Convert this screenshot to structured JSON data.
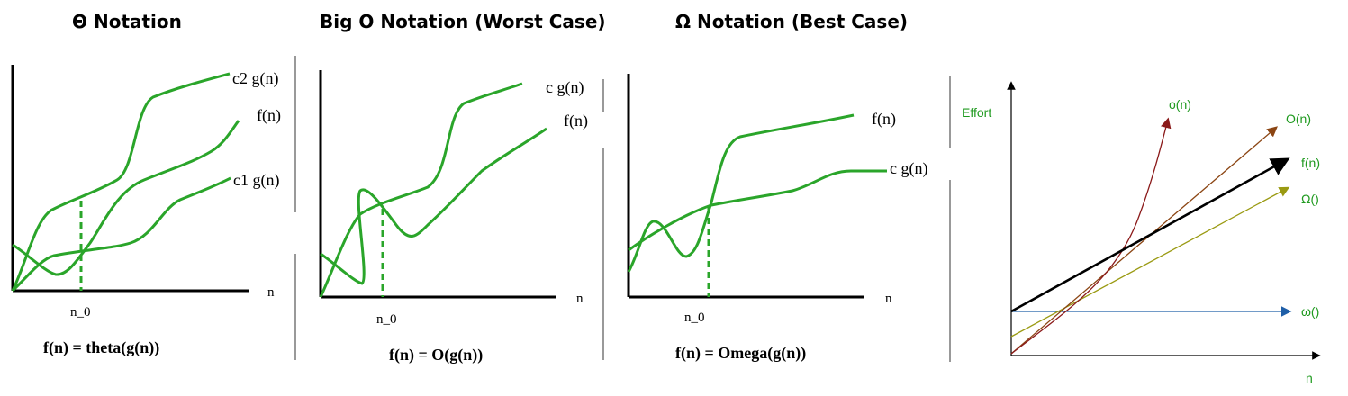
{
  "panels": [
    {
      "title": "Θ Notation",
      "labels": {
        "upper": "c2 g(n)",
        "mid": "f(n)",
        "lower": "c1 g(n)",
        "x_axis": "n",
        "threshold": "n_0"
      },
      "formula": "f(n) = theta(g(n))"
    },
    {
      "title": "Big O Notation (Worst Case)",
      "labels": {
        "upper": "c g(n)",
        "mid": "f(n)",
        "x_axis": "n",
        "threshold": "n_0"
      },
      "formula": "f(n) = O(g(n))"
    },
    {
      "title": "Ω Notation (Best Case)",
      "labels": {
        "upper": "f(n)",
        "lower": "c g(n)",
        "x_axis": "n",
        "threshold": "n_0"
      },
      "formula": "f(n) = Omega(g(n))"
    }
  ],
  "comparison": {
    "y_axis_label": "Effort",
    "x_axis_label": "n",
    "curves": [
      {
        "name": "o(n)",
        "color": "#8b1a1a"
      },
      {
        "name": "O(n)",
        "color": "#8b4513"
      },
      {
        "name": "f(n)",
        "color": "#000000"
      },
      {
        "name": "Ω()",
        "color": "#9a9a12"
      },
      {
        "name": "ω()",
        "color": "#1f5fa8"
      }
    ],
    "label_color": "#1f9a1f"
  },
  "colors": {
    "curve": "#2aa52a",
    "axis": "#000000"
  }
}
